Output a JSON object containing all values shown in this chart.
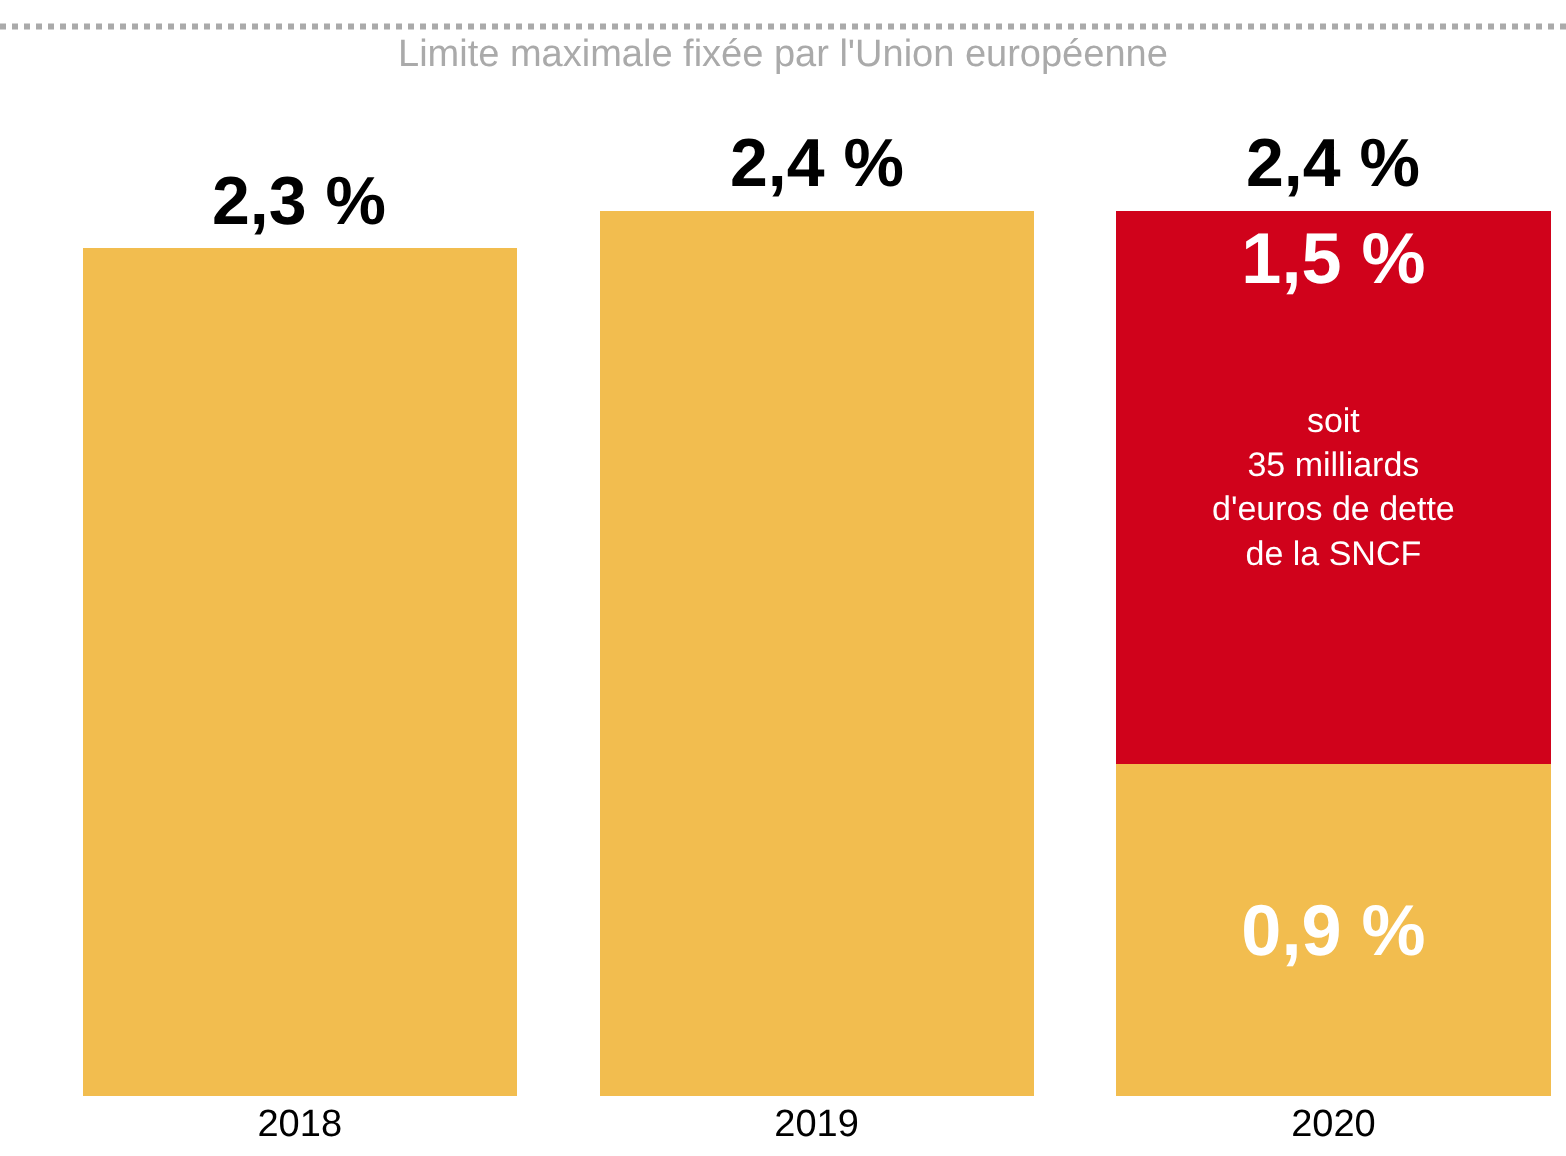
{
  "chart_data": {
    "type": "bar",
    "stacked": true,
    "categories": [
      "2018",
      "2019",
      "2020"
    ],
    "series": [
      {
        "color": "#f2bd4f",
        "values": [
          2.3,
          2.4,
          0.9
        ],
        "value_labels": [
          null,
          null,
          "0,9 %"
        ]
      },
      {
        "color": "#d0021b",
        "values": [
          null,
          null,
          1.5
        ],
        "value_labels": [
          null,
          null,
          "1,5 %"
        ]
      }
    ],
    "totals": [
      "2,3 %",
      "2,4 %",
      "2,4 %"
    ],
    "ylim": [
      0,
      2.95
    ],
    "tick_labels": "x",
    "legend": false,
    "ref_lines": [
      {
        "axis": "y",
        "value": 2.9,
        "label": "Limite maximale fixée par l'Union européenne",
        "color": "#aaaaaa",
        "line_style": "dotted"
      }
    ],
    "annotations": [
      "soit\n35 milliards\nd'euros de dette\nde la SNCF"
    ]
  }
}
